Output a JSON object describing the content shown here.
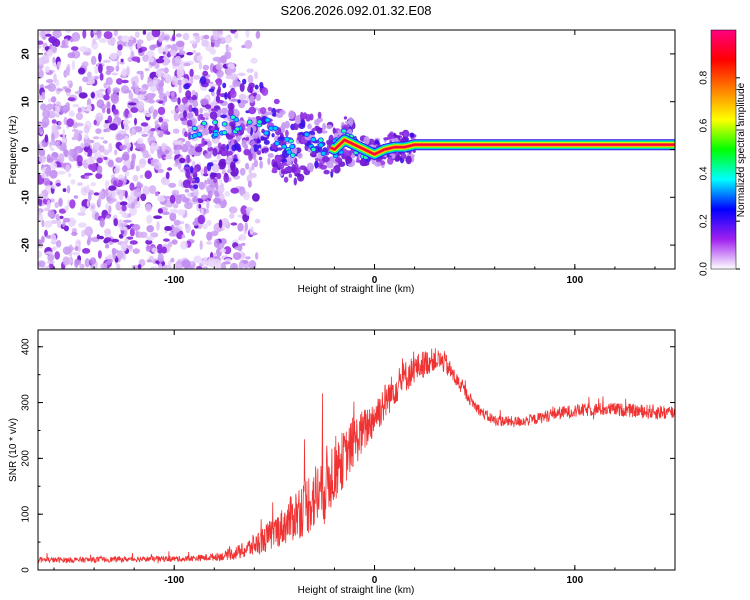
{
  "title": "S206.2026.092.01.32.E08",
  "chart_data": [
    {
      "type": "heatmap",
      "xlabel": "Height of straight line (km)",
      "ylabel": "Frequency (Hz)",
      "xlim": [
        -168,
        150
      ],
      "ylim": [
        -25,
        25
      ],
      "x_ticks": [
        "-100",
        "0",
        "100"
      ],
      "y_ticks": [
        "20",
        "10",
        "0",
        "-10",
        "-20"
      ],
      "colorbar": {
        "label": "Normalized spectral amplitude",
        "range": [
          0,
          1
        ],
        "ticks": [
          "0.0",
          "0.2",
          "0.4",
          "0.6",
          "0.8"
        ],
        "stops": [
          "#ffffff",
          "#a020f0",
          "#0000ff",
          "#00ffff",
          "#00ff00",
          "#ffff00",
          "#ff8000",
          "#ff0000",
          "#ff0080"
        ]
      },
      "ridge": {
        "x": [
          -92,
          -80,
          -70,
          -60,
          -55,
          -50,
          -45,
          -40,
          -35,
          -30,
          -25,
          -20,
          -15,
          -10,
          -5,
          0,
          5,
          10,
          15,
          20,
          150
        ],
        "y": [
          3,
          4,
          5,
          6,
          5,
          3,
          1,
          0,
          1,
          2,
          1,
          0,
          2,
          1,
          0,
          -1,
          0,
          0.5,
          0.5,
          1,
          1
        ]
      }
    },
    {
      "type": "line",
      "xlabel": "Height of straight line (km)",
      "ylabel": "SNR (10 * v/v)",
      "xlim": [
        -168,
        150
      ],
      "ylim": [
        0,
        430
      ],
      "x_ticks": [
        "-100",
        "0",
        "100"
      ],
      "y_ticks": [
        "0",
        "100",
        "200",
        "300",
        "400"
      ],
      "color": "#f03232",
      "series": [
        {
          "name": "SNR",
          "x": [
            -168,
            -150,
            -130,
            -110,
            -95,
            -85,
            -75,
            -65,
            -55,
            -45,
            -38,
            -30,
            -25,
            -20,
            -15,
            -10,
            -5,
            0,
            5,
            10,
            15,
            20,
            25,
            30,
            35,
            40,
            45,
            50,
            55,
            60,
            70,
            80,
            90,
            100,
            110,
            120,
            130,
            140,
            150
          ],
          "values": [
            18,
            18,
            19,
            20,
            20,
            22,
            25,
            35,
            55,
            80,
            105,
            130,
            150,
            180,
            200,
            230,
            250,
            275,
            300,
            325,
            345,
            360,
            370,
            378,
            372,
            345,
            320,
            295,
            278,
            268,
            265,
            270,
            280,
            285,
            288,
            288,
            285,
            283,
            282
          ],
          "noise": [
            5,
            5,
            5,
            5,
            5,
            6,
            8,
            15,
            25,
            35,
            50,
            60,
            70,
            60,
            50,
            45,
            40,
            35,
            35,
            30,
            30,
            25,
            25,
            20,
            20,
            15,
            12,
            10,
            10,
            10,
            10,
            10,
            12,
            12,
            12,
            12,
            12,
            14,
            14
          ]
        }
      ]
    }
  ]
}
